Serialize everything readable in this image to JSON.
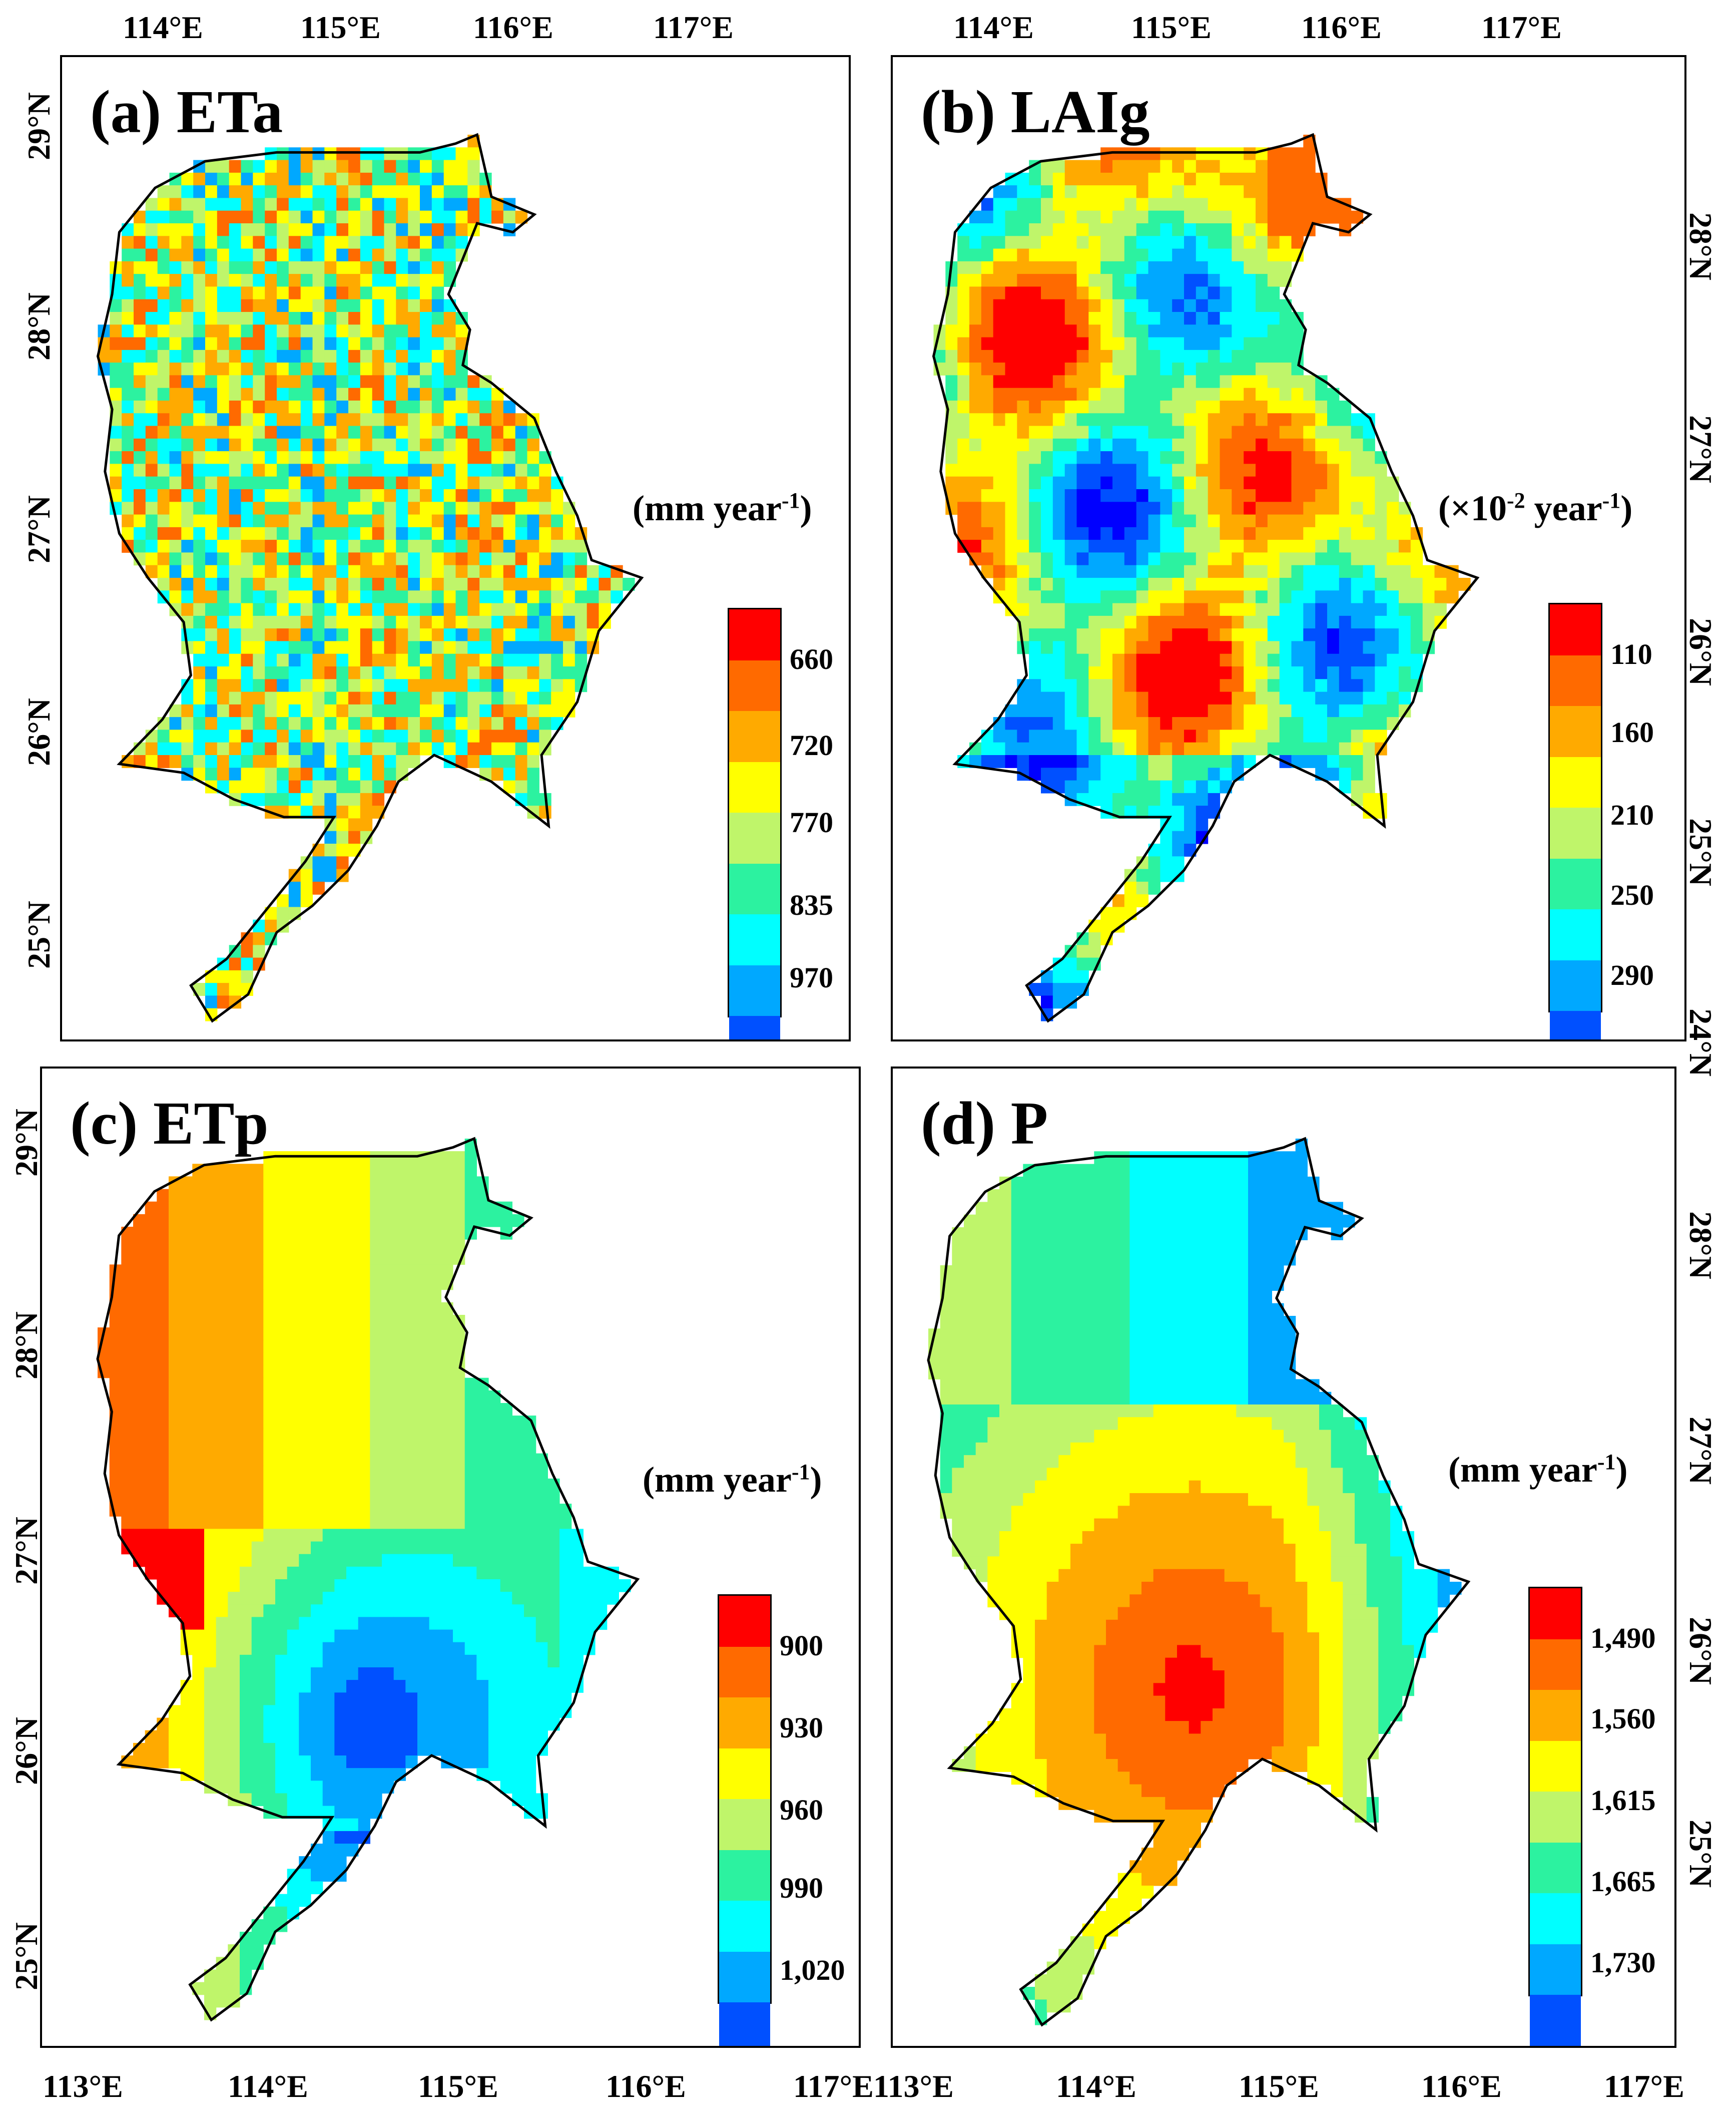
{
  "panels": [
    {
      "id": "a",
      "title": "(a) ETa",
      "units_main": "(mm year",
      "units_sup": "-1",
      "units_close": ")",
      "legend_ticks": [
        "660",
        "720",
        "770",
        "835",
        "970"
      ],
      "field": "noisy"
    },
    {
      "id": "b",
      "title": "(b) LAIg",
      "units_main": "(×10",
      "units_sup": "-2",
      "units_mid": " year",
      "units_sup2": "-1",
      "units_close": ")",
      "legend_ticks": [
        "110",
        "160",
        "210",
        "250",
        "290"
      ],
      "field": "patchy"
    },
    {
      "id": "c",
      "title": "(c) ETp",
      "units_main": "(mm year",
      "units_sup": "-1",
      "units_close": ")",
      "legend_ticks": [
        "900",
        "930",
        "960",
        "990",
        "1,020"
      ],
      "field": "etp"
    },
    {
      "id": "d",
      "title": "(d) P",
      "units_main": "(mm year",
      "units_sup": "-1",
      "units_close": ")",
      "legend_ticks": [
        "1,490",
        "1,560",
        "1,615",
        "1,665",
        "1,730"
      ],
      "field": "precip"
    }
  ],
  "legend_colors": [
    "#ff0000",
    "#ff6a00",
    "#ffaa00",
    "#ffff00",
    "#bff56a",
    "#2cf2a0",
    "#00ffff",
    "#00a8ff",
    "#0050ff",
    "#0000ff"
  ],
  "axes": {
    "top_lon_labels": [
      "114°E",
      "115°E",
      "116°E",
      "117°E"
    ],
    "bottom_lon_labels": [
      "113°E",
      "114°E",
      "115°E",
      "116°E",
      "117°E"
    ],
    "left_lat_labels": [
      "29°N",
      "28°N",
      "27°N",
      "26°N",
      "25°N"
    ],
    "right_lat_labels": [
      "28°N",
      "27°N",
      "26°N",
      "25°N",
      "24°N"
    ]
  }
}
